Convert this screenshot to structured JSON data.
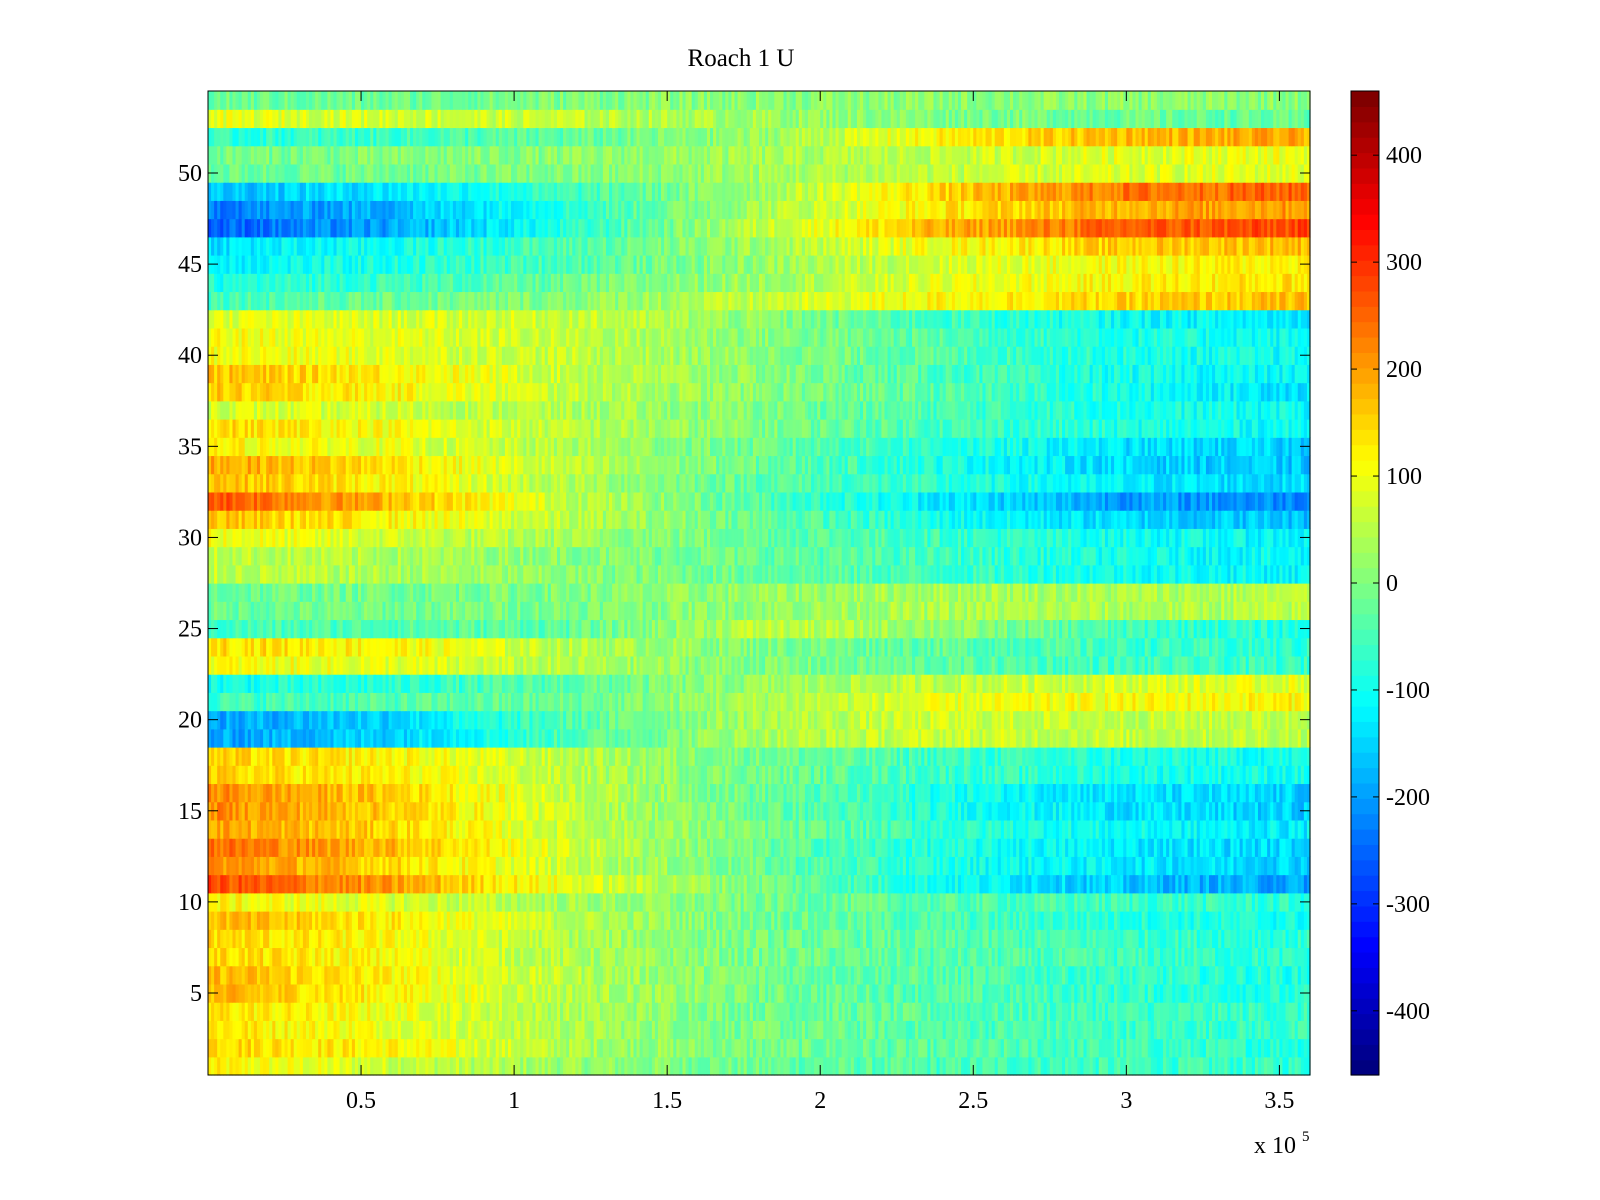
{
  "chart_data": {
    "type": "heatmap",
    "title": "Roach 1 U",
    "xlabel": "",
    "ylabel": "",
    "x_multiplier_label": "x 10",
    "x_multiplier_exponent": "5",
    "xlim": [
      0,
      360000
    ],
    "ylim": [
      0.5,
      54.5
    ],
    "rows": 54,
    "columns": 360,
    "x_ticks": [
      50000,
      100000,
      150000,
      200000,
      250000,
      300000,
      350000
    ],
    "x_tick_labels": [
      "0.5",
      "1",
      "1.5",
      "2",
      "2.5",
      "3",
      "3.5"
    ],
    "y_ticks": [
      5,
      10,
      15,
      20,
      25,
      30,
      35,
      40,
      45,
      50
    ],
    "y_tick_labels": [
      "5",
      "10",
      "15",
      "20",
      "25",
      "30",
      "35",
      "40",
      "45",
      "50"
    ],
    "colorbar": {
      "colormap": "jet",
      "clim": [
        -460,
        460
      ],
      "ticks": [
        400,
        300,
        200,
        100,
        0,
        -100,
        -200,
        -300,
        -400
      ],
      "tick_labels": [
        "400",
        "300",
        "200",
        "100",
        "0",
        "-100",
        "-200",
        "-300",
        "-400"
      ]
    },
    "x_profile": [
      0,
      60000,
      120000,
      180000,
      240000,
      300000,
      360000
    ],
    "row_profiles": [
      {
        "rows": [
          1,
          1
        ],
        "values": [
          120,
          70,
          20,
          -20,
          -50,
          -60,
          -70
        ]
      },
      {
        "rows": [
          2,
          2
        ],
        "values": [
          160,
          120,
          40,
          -10,
          -40,
          -60,
          -80
        ]
      },
      {
        "rows": [
          3,
          4
        ],
        "values": [
          140,
          100,
          40,
          -10,
          -40,
          -60,
          -70
        ]
      },
      {
        "rows": [
          5,
          6
        ],
        "values": [
          180,
          120,
          50,
          -10,
          -40,
          -70,
          -90
        ]
      },
      {
        "rows": [
          7,
          8
        ],
        "values": [
          150,
          110,
          40,
          -10,
          -40,
          -60,
          -80
        ]
      },
      {
        "rows": [
          9,
          9
        ],
        "values": [
          180,
          130,
          50,
          -10,
          -50,
          -80,
          -100
        ]
      },
      {
        "rows": [
          10,
          10
        ],
        "values": [
          120,
          80,
          30,
          -10,
          -40,
          -60,
          -80
        ]
      },
      {
        "rows": [
          11,
          11
        ],
        "values": [
          280,
          200,
          90,
          0,
          -100,
          -170,
          -200
        ]
      },
      {
        "rows": [
          12,
          12
        ],
        "values": [
          220,
          150,
          60,
          -20,
          -90,
          -130,
          -150
        ]
      },
      {
        "rows": [
          13,
          13
        ],
        "values": [
          250,
          180,
          70,
          -20,
          -90,
          -130,
          -150
        ]
      },
      {
        "rows": [
          14,
          14
        ],
        "values": [
          200,
          150,
          60,
          -10,
          -70,
          -110,
          -130
        ]
      },
      {
        "rows": [
          15,
          16
        ],
        "values": [
          220,
          160,
          60,
          -20,
          -90,
          -140,
          -160
        ]
      },
      {
        "rows": [
          17,
          18
        ],
        "values": [
          150,
          120,
          50,
          -10,
          -60,
          -90,
          -100
        ]
      },
      {
        "rows": [
          19,
          20
        ],
        "values": [
          -200,
          -150,
          -40,
          40,
          70,
          60,
          60
        ]
      },
      {
        "rows": [
          21,
          21
        ],
        "values": [
          -60,
          -40,
          -20,
          40,
          90,
          110,
          120
        ]
      },
      {
        "rows": [
          22,
          22
        ],
        "values": [
          -100,
          -80,
          -30,
          20,
          60,
          80,
          90
        ]
      },
      {
        "rows": [
          23,
          23
        ],
        "values": [
          110,
          90,
          40,
          0,
          -30,
          -60,
          -70
        ]
      },
      {
        "rows": [
          24,
          24
        ],
        "values": [
          150,
          120,
          50,
          0,
          -30,
          -60,
          -80
        ]
      },
      {
        "rows": [
          25,
          25
        ],
        "values": [
          -60,
          -40,
          -30,
          60,
          20,
          -60,
          -90
        ]
      },
      {
        "rows": [
          26,
          27
        ],
        "values": [
          -20,
          -10,
          0,
          20,
          40,
          40,
          50
        ]
      },
      {
        "rows": [
          28,
          29
        ],
        "values": [
          60,
          40,
          10,
          -20,
          -60,
          -100,
          -120
        ]
      },
      {
        "rows": [
          30,
          30
        ],
        "values": [
          110,
          70,
          30,
          -20,
          -60,
          -100,
          -120
        ]
      },
      {
        "rows": [
          31,
          31
        ],
        "values": [
          170,
          120,
          50,
          -20,
          -100,
          -150,
          -170
        ]
      },
      {
        "rows": [
          32,
          32
        ],
        "values": [
          280,
          180,
          60,
          -40,
          -130,
          -200,
          -220
        ]
      },
      {
        "rows": [
          33,
          33
        ],
        "values": [
          180,
          120,
          40,
          -30,
          -80,
          -130,
          -150
        ]
      },
      {
        "rows": [
          34,
          34
        ],
        "values": [
          200,
          140,
          50,
          -20,
          -90,
          -150,
          -170
        ]
      },
      {
        "rows": [
          35,
          35
        ],
        "values": [
          120,
          90,
          40,
          -20,
          -80,
          -140,
          -160
        ]
      },
      {
        "rows": [
          36,
          36
        ],
        "values": [
          150,
          110,
          50,
          0,
          -50,
          -90,
          -110
        ]
      },
      {
        "rows": [
          37,
          37
        ],
        "values": [
          80,
          70,
          40,
          0,
          -50,
          -90,
          -110
        ]
      },
      {
        "rows": [
          38,
          38
        ],
        "values": [
          160,
          120,
          60,
          10,
          -40,
          -100,
          -140
        ]
      },
      {
        "rows": [
          39,
          39
        ],
        "values": [
          170,
          130,
          60,
          10,
          -50,
          -100,
          -120
        ]
      },
      {
        "rows": [
          40,
          41
        ],
        "values": [
          110,
          90,
          60,
          10,
          -40,
          -90,
          -110
        ]
      },
      {
        "rows": [
          42,
          42
        ],
        "values": [
          90,
          80,
          70,
          10,
          -60,
          -110,
          -130
        ]
      },
      {
        "rows": [
          43,
          43
        ],
        "values": [
          -50,
          -20,
          10,
          60,
          120,
          150,
          170
        ]
      },
      {
        "rows": [
          44,
          44
        ],
        "values": [
          -90,
          -60,
          -20,
          30,
          90,
          120,
          140
        ]
      },
      {
        "rows": [
          45,
          45
        ],
        "values": [
          -120,
          -90,
          -40,
          20,
          80,
          110,
          130
        ]
      },
      {
        "rows": [
          46,
          46
        ],
        "values": [
          -140,
          -100,
          -40,
          30,
          110,
          160,
          180
        ]
      },
      {
        "rows": [
          47,
          47
        ],
        "values": [
          -260,
          -200,
          -80,
          60,
          180,
          260,
          280
        ]
      },
      {
        "rows": [
          48,
          48
        ],
        "values": [
          -230,
          -180,
          -70,
          40,
          130,
          190,
          210
        ]
      },
      {
        "rows": [
          49,
          49
        ],
        "values": [
          -170,
          -130,
          -60,
          30,
          150,
          240,
          260
        ]
      },
      {
        "rows": [
          50,
          50
        ],
        "values": [
          -20,
          -10,
          0,
          30,
          60,
          80,
          90
        ]
      },
      {
        "rows": [
          51,
          51
        ],
        "values": [
          -10,
          0,
          10,
          30,
          60,
          90,
          100
        ]
      },
      {
        "rows": [
          52,
          52
        ],
        "values": [
          -80,
          -60,
          -30,
          20,
          120,
          180,
          190
        ]
      },
      {
        "rows": [
          53,
          53
        ],
        "values": [
          90,
          80,
          60,
          30,
          0,
          -20,
          -30
        ]
      },
      {
        "rows": [
          54,
          54
        ],
        "values": [
          -20,
          -20,
          0,
          10,
          10,
          10,
          10
        ]
      }
    ],
    "noise_amplitude": 40
  }
}
